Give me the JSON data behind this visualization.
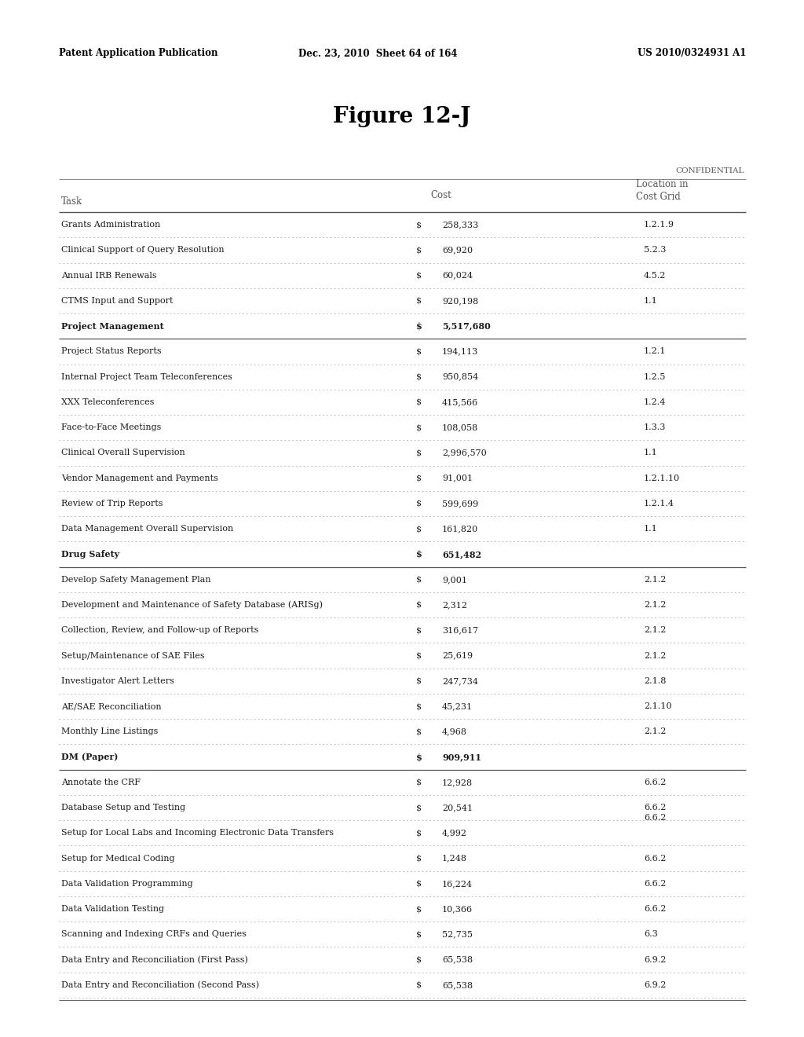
{
  "header_left": "Patent Application Publication",
  "header_mid": "Dec. 23, 2010  Sheet 64 of 164",
  "header_right": "US 2010/0324931 A1",
  "figure_title": "Figure 12-J",
  "confidential": "CONFIDENTIAL",
  "rows": [
    {
      "task": "Grants Administration",
      "cost": "258,333",
      "loc": "1.2.1.9",
      "bold": false
    },
    {
      "task": "Clinical Support of Query Resolution",
      "cost": "69,920",
      "loc": "5.2.3",
      "bold": false
    },
    {
      "task": "Annual IRB Renewals",
      "cost": "60,024",
      "loc": "4.5.2",
      "bold": false
    },
    {
      "task": "CTMS Input and Support",
      "cost": "920,198",
      "loc": "1.1",
      "bold": false
    },
    {
      "task": "Project Management",
      "cost": "5,517,680",
      "loc": "",
      "bold": true
    },
    {
      "task": "Project Status Reports",
      "cost": "194,113",
      "loc": "1.2.1",
      "bold": false
    },
    {
      "task": "Internal Project Team Teleconferences",
      "cost": "950,854",
      "loc": "1.2.5",
      "bold": false
    },
    {
      "task": "XXX Teleconferences",
      "cost": "415,566",
      "loc": "1.2.4",
      "bold": false
    },
    {
      "task": "Face-to-Face Meetings",
      "cost": "108,058",
      "loc": "1.3.3",
      "bold": false
    },
    {
      "task": "Clinical Overall Supervision",
      "cost": "2,996,570",
      "loc": "1.1",
      "bold": false
    },
    {
      "task": "Vendor Management and Payments",
      "cost": "91,001",
      "loc": "1.2.1.10",
      "bold": false
    },
    {
      "task": "Review of Trip Reports",
      "cost": "599,699",
      "loc": "1.2.1.4",
      "bold": false
    },
    {
      "task": "Data Management Overall Supervision",
      "cost": "161,820",
      "loc": "1.1",
      "bold": false
    },
    {
      "task": "Drug Safety",
      "cost": "651,482",
      "loc": "",
      "bold": true
    },
    {
      "task": "Develop Safety Management Plan",
      "cost": "9,001",
      "loc": "2.1.2",
      "bold": false
    },
    {
      "task": "Development and Maintenance of Safety Database (ARISg)",
      "cost": "2,312",
      "loc": "2.1.2",
      "bold": false
    },
    {
      "task": "Collection, Review, and Follow-up of Reports",
      "cost": "316,617",
      "loc": "2.1.2",
      "bold": false
    },
    {
      "task": "Setup/Maintenance of SAE Files",
      "cost": "25,619",
      "loc": "2.1.2",
      "bold": false
    },
    {
      "task": "Investigator Alert Letters",
      "cost": "247,734",
      "loc": "2.1.8",
      "bold": false
    },
    {
      "task": "AE/SAE Reconciliation",
      "cost": "45,231",
      "loc": "2.1.10",
      "bold": false
    },
    {
      "task": "Monthly Line Listings",
      "cost": "4,968",
      "loc": "2.1.2",
      "bold": false
    },
    {
      "task": "DM (Paper)",
      "cost": "909,911",
      "loc": "",
      "bold": true
    },
    {
      "task": "Annotate the CRF",
      "cost": "12,928",
      "loc": "6.6.2",
      "bold": false
    },
    {
      "task": "Database Setup and Testing",
      "cost": "20,541",
      "loc": "6.6.2",
      "bold": false
    },
    {
      "task": "Setup for Local Labs and Incoming Electronic Data Transfers",
      "cost": "4,992",
      "loc": "6.6.2",
      "bold": false,
      "loc_above": true
    },
    {
      "task": "Setup for Medical Coding",
      "cost": "1,248",
      "loc": "6.6.2",
      "bold": false
    },
    {
      "task": "Data Validation Programming",
      "cost": "16,224",
      "loc": "6.6.2",
      "bold": false
    },
    {
      "task": "Data Validation Testing",
      "cost": "10,366",
      "loc": "6.6.2",
      "bold": false
    },
    {
      "task": "Scanning and Indexing CRFs and Queries",
      "cost": "52,735",
      "loc": "6.3",
      "bold": false
    },
    {
      "task": "Data Entry and Reconciliation (First Pass)",
      "cost": "65,538",
      "loc": "6.9.2",
      "bold": false
    },
    {
      "task": "Data Entry and Reconciliation (Second Pass)",
      "cost": "65,538",
      "loc": "6.9.2",
      "bold": false
    }
  ],
  "bg_color": "#ffffff",
  "text_color": "#1a1a1a",
  "header_font_size": 8.5,
  "title_font_size": 20,
  "table_font_size": 8.0,
  "col_header_font_size": 8.5
}
